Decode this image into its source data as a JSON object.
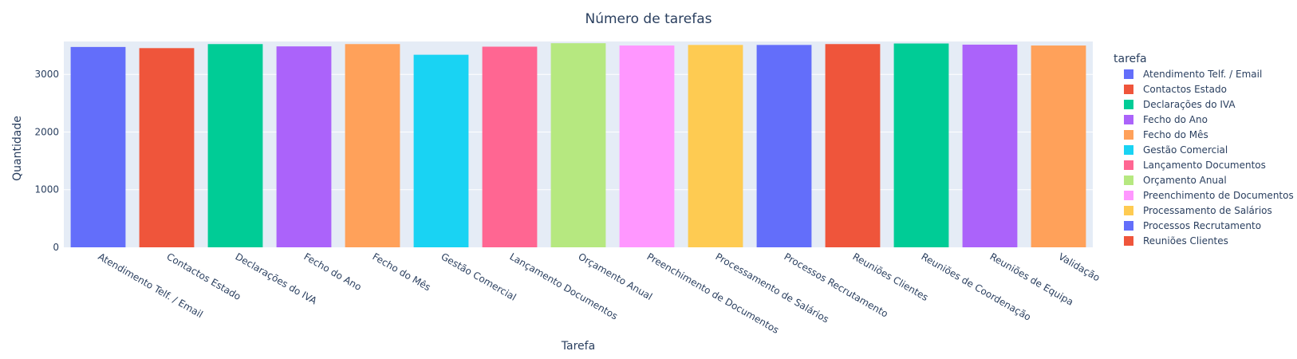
{
  "chart_data": {
    "type": "bar",
    "title": "Número de tarefas",
    "xlabel": "Tarefa",
    "ylabel": "Quantidade",
    "ylim": [
      0,
      3570
    ],
    "yticks": [
      0,
      1000,
      2000,
      3000
    ],
    "grid": true,
    "legend_title": "tarefa",
    "legend_position": "right",
    "categories": [
      "Atendimento Telf. / Email",
      "Contactos Estado",
      "Declarações do IVA",
      "Fecho do Ano",
      "Fecho do Mês",
      "Gestão Comercial",
      "Lançamento Documentos",
      "Orçamento Anual",
      "Preenchimento de Documentos",
      "Processamento de Salários",
      "Processos Recrutamento",
      "Reuniões Clientes",
      "Reuniões de Coordenação",
      "Reuniões de Equipa",
      "Validação"
    ],
    "values": [
      3475,
      3455,
      3525,
      3485,
      3525,
      3340,
      3480,
      3540,
      3500,
      3510,
      3510,
      3525,
      3535,
      3515,
      3500
    ],
    "colors": [
      "#636efa",
      "#ef553b",
      "#00cc96",
      "#ab63fa",
      "#ffa15a",
      "#19d3f3",
      "#ff6692",
      "#b6e880",
      "#ff97ff",
      "#fecb52",
      "#636efa",
      "#ef553b",
      "#00cc96",
      "#ab63fa",
      "#ffa15a"
    ],
    "legend_entries": [
      "Atendimento Telf. / Email",
      "Contactos Estado",
      "Declarações do IVA",
      "Fecho do Ano",
      "Fecho do Mês",
      "Gestão Comercial",
      "Lançamento Documentos",
      "Orçamento Anual",
      "Preenchimento de Documentos",
      "Processamento de Salários",
      "Processos Recrutamento",
      "Reuniões Clientes"
    ],
    "plot_bg": "#e5ecf6",
    "grid_color": "#ffffff",
    "text_color": "#2a3f5f"
  }
}
